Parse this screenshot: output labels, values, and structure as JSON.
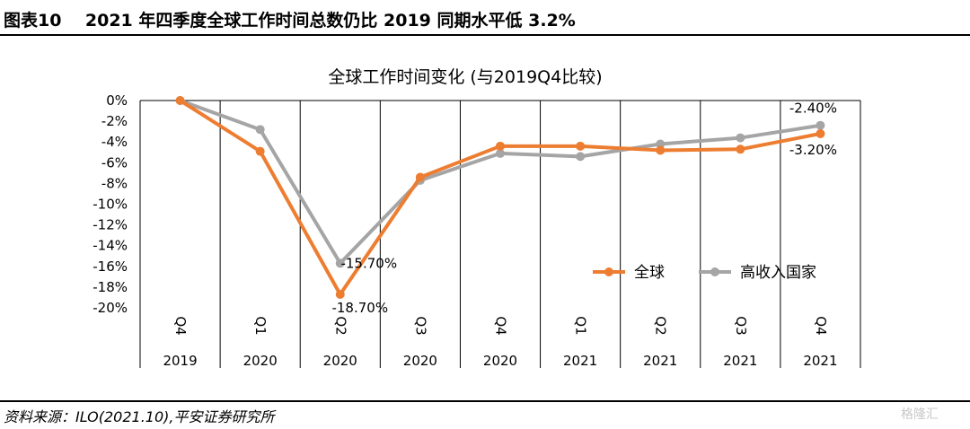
{
  "header": {
    "title": "图表10    2021 年四季度全球工作时间总数仍比 2019 同期水平低 3.2%"
  },
  "footer": {
    "source": "资料来源：ILO(2021.10),平安证券研究所"
  },
  "watermark": {
    "text": "格隆汇"
  },
  "chart_data": {
    "type": "line",
    "title": "全球工作时间变化 (与2019Q4比较)",
    "xlabel": "",
    "ylabel": "",
    "ylim": [
      -20,
      0
    ],
    "y_ticks": [
      "0%",
      "-2%",
      "-4%",
      "-6%",
      "-8%",
      "-10%",
      "-12%",
      "-14%",
      "-16%",
      "-18%",
      "-20%"
    ],
    "categories": [
      {
        "quarter": "Q4",
        "year": "2019"
      },
      {
        "quarter": "Q1",
        "year": "2020"
      },
      {
        "quarter": "Q2",
        "year": "2020"
      },
      {
        "quarter": "Q3",
        "year": "2020"
      },
      {
        "quarter": "Q4",
        "year": "2020"
      },
      {
        "quarter": "Q1",
        "year": "2021"
      },
      {
        "quarter": "Q2",
        "year": "2021"
      },
      {
        "quarter": "Q3",
        "year": "2021"
      },
      {
        "quarter": "Q4",
        "year": "2021"
      }
    ],
    "series": [
      {
        "name": "全球",
        "color": "#ED7D31",
        "values": [
          0,
          -4.9,
          -18.7,
          -7.4,
          -4.4,
          -4.4,
          -4.8,
          -4.7,
          -3.2
        ]
      },
      {
        "name": "高收入国家",
        "color": "#A5A5A5",
        "values": [
          0,
          -2.8,
          -15.7,
          -7.7,
          -5.1,
          -5.4,
          -4.2,
          -3.6,
          -2.4
        ]
      }
    ],
    "data_labels": [
      {
        "series": 0,
        "index": 2,
        "text": "-18.70%"
      },
      {
        "series": 1,
        "index": 2,
        "text": "-15.70%"
      },
      {
        "series": 1,
        "index": 8,
        "text": "-2.40%"
      },
      {
        "series": 0,
        "index": 8,
        "text": "-3.20%"
      }
    ],
    "legend_position": "lower-right",
    "grid": false
  }
}
